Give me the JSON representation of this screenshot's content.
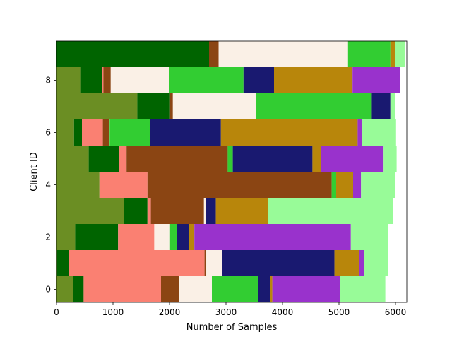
{
  "chart_data": {
    "type": "bar",
    "orientation": "horizontal",
    "stacked": true,
    "xlabel": "Number of Samples",
    "ylabel": "Client ID",
    "xlim": [
      0,
      6200
    ],
    "ylim": [
      -0.5,
      9.5
    ],
    "xticks": [
      0,
      1000,
      2000,
      3000,
      4000,
      5000,
      6000
    ],
    "yticks": [
      0,
      2,
      4,
      6,
      8
    ],
    "grid": false,
    "legend": "none",
    "colors": [
      "#6b8e23",
      "#006400",
      "#fa8072",
      "#8b4513",
      "#faf0e6",
      "#32cd32",
      "#191970",
      "#b8860b",
      "#9932cc",
      "#98fb98"
    ],
    "categories": [
      "0",
      "1",
      "2",
      "3",
      "4",
      "5",
      "6",
      "7",
      "8",
      "9"
    ],
    "series": [
      {
        "values": [
          290,
          10,
          330,
          1190,
          760,
          570,
          310,
          1430,
          420,
          0
        ]
      },
      {
        "values": [
          190,
          210,
          760,
          420,
          0,
          540,
          140,
          580,
          380,
          2700
        ]
      },
      {
        "values": [
          1370,
          2400,
          640,
          60,
          850,
          130,
          370,
          0,
          30,
          0
        ]
      },
      {
        "values": [
          320,
          20,
          0,
          940,
          3260,
          1790,
          110,
          50,
          130,
          170
        ]
      },
      {
        "values": [
          580,
          290,
          280,
          30,
          0,
          0,
          10,
          1470,
          1040,
          2290
        ]
      },
      {
        "values": [
          820,
          0,
          120,
          0,
          80,
          90,
          720,
          2050,
          1310,
          750
        ]
      },
      {
        "values": [
          210,
          1990,
          210,
          180,
          0,
          1410,
          1250,
          330,
          540,
          0
        ]
      },
      {
        "values": [
          40,
          440,
          100,
          930,
          300,
          150,
          2420,
          0,
          1390,
          80
        ]
      },
      {
        "values": [
          1200,
          80,
          2770,
          0,
          140,
          1110,
          70,
          0,
          840,
          0
        ]
      },
      {
        "values": [
          800,
          430,
          660,
          2200,
          600,
          230,
          610,
          80,
          0,
          180
        ]
      }
    ]
  }
}
